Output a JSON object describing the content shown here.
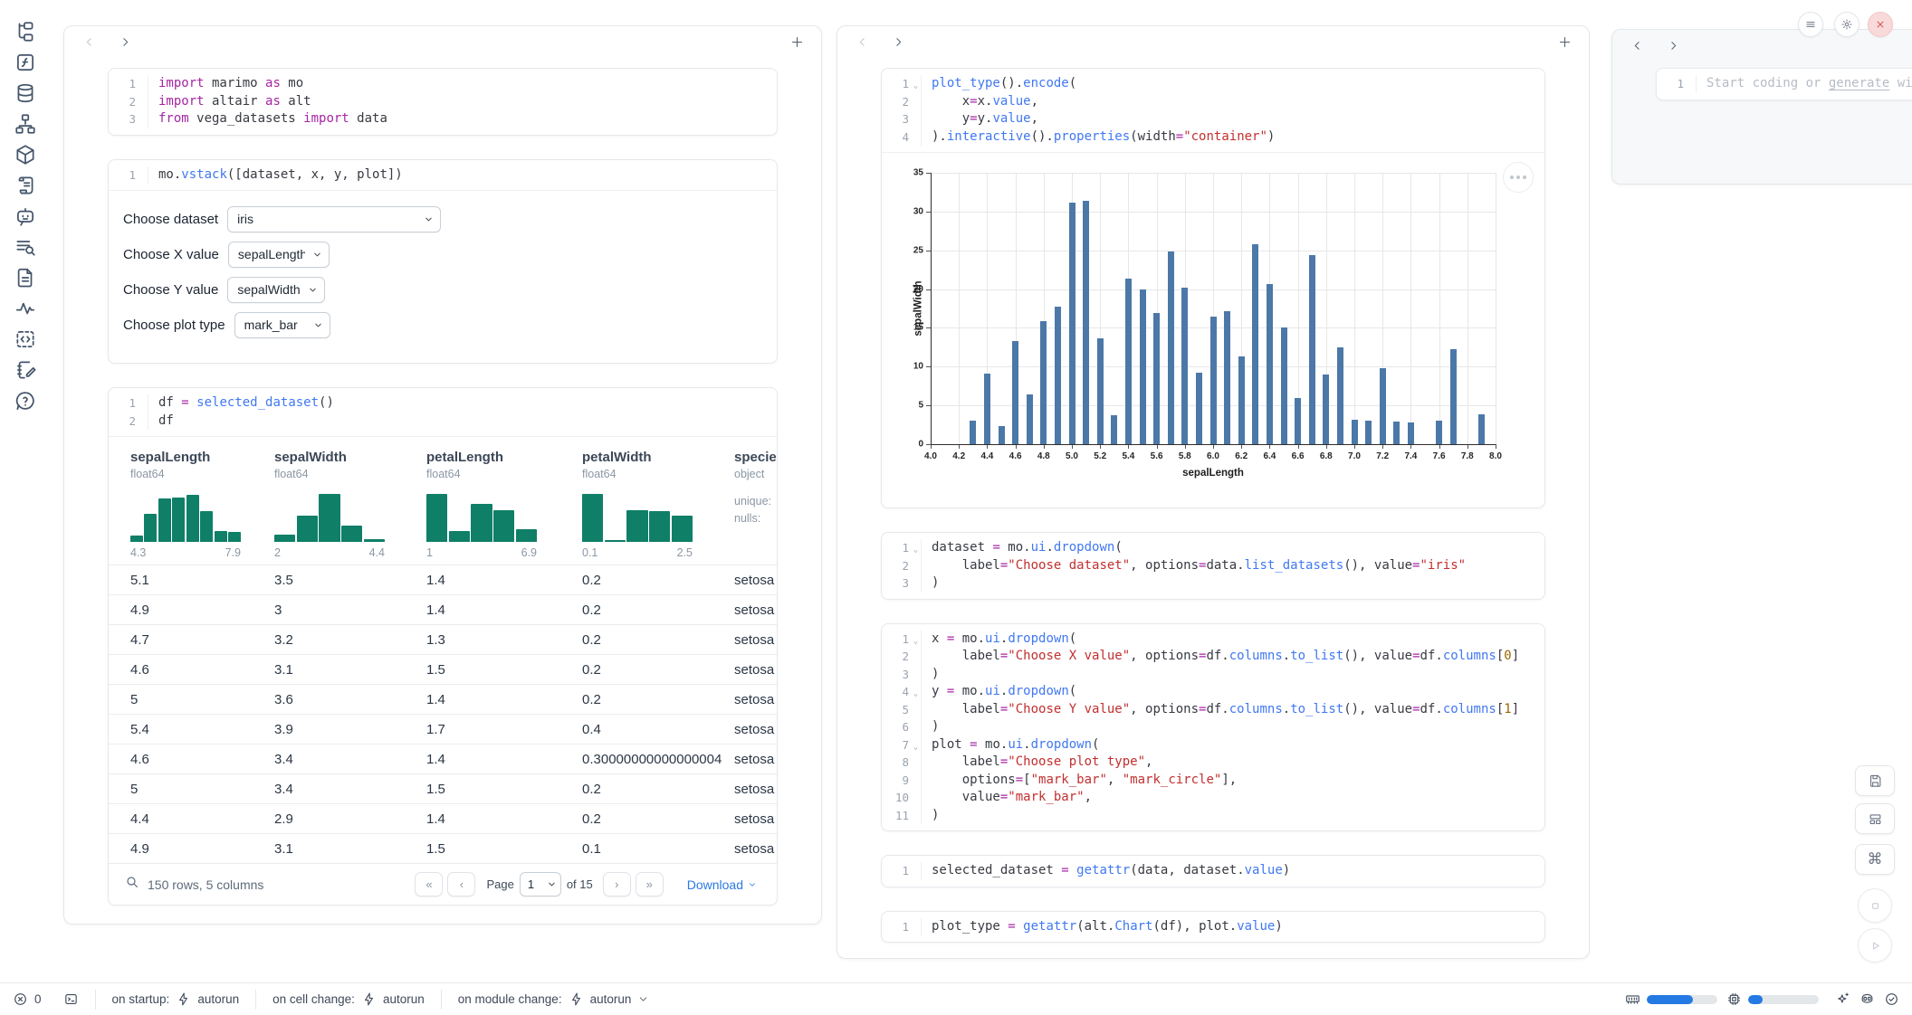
{
  "app": {
    "name": "marimo notebook"
  },
  "sidebar": {
    "icons": [
      "file-explorer",
      "variables",
      "datasources",
      "dependency-graph",
      "packages",
      "logs",
      "ai-chat",
      "outline-search",
      "documentation",
      "tracing",
      "snippets",
      "scratchpad",
      "help"
    ]
  },
  "cells": {
    "imports": {
      "lines": [
        "import marimo as mo",
        "import altair as alt",
        "from vega_datasets import data"
      ],
      "folds": []
    },
    "vstack": {
      "lines": [
        "mo.vstack([dataset, x, y, plot])"
      ],
      "folds": []
    },
    "df": {
      "lines": [
        "df = selected_dataset()",
        "df"
      ],
      "folds": []
    },
    "plot": {
      "lines": [
        "plot_type().encode(",
        "    x=x.value,",
        "    y=y.value,",
        ").interactive().properties(width=\"container\")"
      ],
      "folds": [
        1
      ]
    },
    "dataset_dd": {
      "lines": [
        "dataset = mo.ui.dropdown(",
        "    label=\"Choose dataset\", options=data.list_datasets(), value=\"iris\"",
        ")"
      ],
      "folds": [
        1
      ]
    },
    "xyplot": {
      "lines": [
        "x = mo.ui.dropdown(",
        "    label=\"Choose X value\", options=df.columns.to_list(), value=df.columns[0]",
        ")",
        "y = mo.ui.dropdown(",
        "    label=\"Choose Y value\", options=df.columns.to_list(), value=df.columns[1]",
        ")",
        "plot = mo.ui.dropdown(",
        "    label=\"Choose plot type\",",
        "    options=[\"mark_bar\", \"mark_circle\"],",
        "    value=\"mark_bar\",",
        ")"
      ],
      "folds": [
        1,
        4,
        7
      ]
    },
    "selected": {
      "lines": [
        "selected_dataset = getattr(data, dataset.value)"
      ],
      "folds": []
    },
    "plottype": {
      "lines": [
        "plot_type = getattr(alt.Chart(df), plot.value)"
      ],
      "folds": []
    }
  },
  "controls": {
    "rows": [
      {
        "label": "Choose dataset",
        "value": "iris"
      },
      {
        "label": "Choose X value",
        "value": "sepalLength"
      },
      {
        "label": "Choose Y value",
        "value": "sepalWidth"
      },
      {
        "label": "Choose plot type",
        "value": "mark_bar"
      }
    ]
  },
  "table": {
    "columns": [
      {
        "name": "sepalLength",
        "dtype": "float64",
        "hist": {
          "min": "4.3",
          "max": "7.9",
          "bars": [
            0.13,
            0.55,
            0.85,
            0.88,
            0.93,
            0.6,
            0.22,
            0.2
          ]
        }
      },
      {
        "name": "sepalWidth",
        "dtype": "float64",
        "hist": {
          "min": "2",
          "max": "4.4",
          "bars": [
            0.14,
            0.52,
            0.95,
            0.33,
            0.06
          ]
        }
      },
      {
        "name": "petalLength",
        "dtype": "float64",
        "hist": {
          "min": "1",
          "max": "6.9",
          "bars": [
            0.95,
            0.22,
            0.75,
            0.62,
            0.25
          ]
        }
      },
      {
        "name": "petalWidth",
        "dtype": "float64",
        "hist": {
          "min": "0.1",
          "max": "2.5",
          "bars": [
            0.95,
            0.04,
            0.62,
            0.6,
            0.52
          ]
        }
      },
      {
        "name": "species",
        "dtype": "object",
        "meta": [
          "unique:",
          "nulls:"
        ]
      }
    ],
    "rows": [
      [
        "5.1",
        "3.5",
        "1.4",
        "0.2",
        "setosa"
      ],
      [
        "4.9",
        "3",
        "1.4",
        "0.2",
        "setosa"
      ],
      [
        "4.7",
        "3.2",
        "1.3",
        "0.2",
        "setosa"
      ],
      [
        "4.6",
        "3.1",
        "1.5",
        "0.2",
        "setosa"
      ],
      [
        "5",
        "3.6",
        "1.4",
        "0.2",
        "setosa"
      ],
      [
        "5.4",
        "3.9",
        "1.7",
        "0.4",
        "setosa"
      ],
      [
        "4.6",
        "3.4",
        "1.4",
        "0.30000000000000004",
        "setosa"
      ],
      [
        "5",
        "3.4",
        "1.5",
        "0.2",
        "setosa"
      ],
      [
        "4.4",
        "2.9",
        "1.4",
        "0.2",
        "setosa"
      ],
      [
        "4.9",
        "3.1",
        "1.5",
        "0.1",
        "setosa"
      ]
    ],
    "footer": {
      "summary": "150 rows, 5 columns",
      "first": "«",
      "prev": "‹",
      "page_label": "Page",
      "page": "1",
      "of": "of 15",
      "next": "›",
      "last": "»",
      "download": "Download"
    }
  },
  "chart_data": {
    "type": "bar",
    "title": "",
    "xlabel": "sepalLength",
    "ylabel": "sepalWidth",
    "xlim": [
      4.0,
      8.0
    ],
    "ylim": [
      0,
      35
    ],
    "x_tick_step": 0.2,
    "y_tick_step": 5,
    "grid": true,
    "bar_color": "#4c78a8",
    "x": [
      4.3,
      4.4,
      4.5,
      4.6,
      4.7,
      4.8,
      4.9,
      5.0,
      5.1,
      5.2,
      5.3,
      5.4,
      5.5,
      5.6,
      5.7,
      5.8,
      5.9,
      6.0,
      6.1,
      6.2,
      6.3,
      6.4,
      6.5,
      6.6,
      6.7,
      6.8,
      6.9,
      7.0,
      7.1,
      7.2,
      7.3,
      7.4,
      7.6,
      7.7,
      7.9
    ],
    "values": [
      3.0,
      9.1,
      2.3,
      13.3,
      6.4,
      15.9,
      17.7,
      31.2,
      31.4,
      13.7,
      3.7,
      21.4,
      20.0,
      16.9,
      24.9,
      20.2,
      9.2,
      16.4,
      17.1,
      11.3,
      25.8,
      20.7,
      15.0,
      6.0,
      24.4,
      9.0,
      12.5,
      3.2,
      3.0,
      9.8,
      2.9,
      2.8,
      3.0,
      12.2,
      3.8
    ]
  },
  "new_cell": {
    "line_no": "1",
    "placeholder_prefix": "Start coding or ",
    "placeholder_link": "generate",
    "placeholder_suffix": " with"
  },
  "status_bar": {
    "error_count": "0",
    "items": [
      {
        "label": "on startup:",
        "action": "autorun",
        "chevron": false
      },
      {
        "label": "on cell change:",
        "action": "autorun",
        "chevron": false
      },
      {
        "label": "on module change:",
        "action": "autorun",
        "chevron": true
      }
    ],
    "memory_pct": 65,
    "cpu_pct": 20
  },
  "colors": {
    "hist_bar": "#0f7f68",
    "chart_bar": "#4c78a8",
    "link_blue": "#2a7ae2",
    "meter_fill": "#2479e3",
    "close_red": "#d44a4a"
  }
}
